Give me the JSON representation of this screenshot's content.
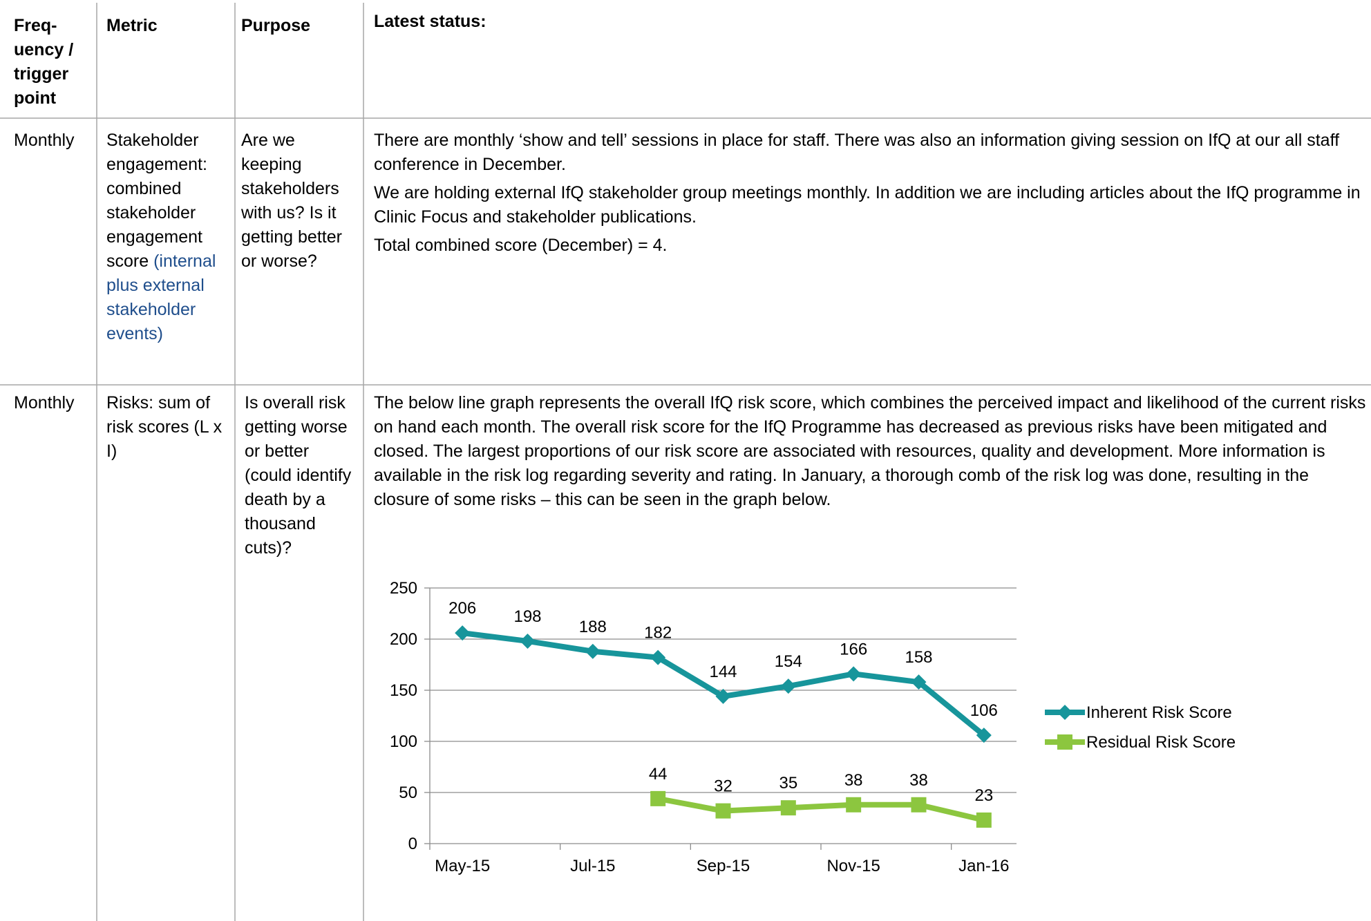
{
  "table": {
    "headers": [
      "Freq-uency / trigger point",
      "Metric",
      "Purpose",
      "Latest status:"
    ],
    "rows": [
      {
        "frequency": "Monthly",
        "metric": "Stakeholder engagement: combined stakeholder engagement score",
        "metric_note": "(internal plus external stakeholder events)",
        "purpose": "Are we keeping stakeholders with us? Is it getting better or worse?",
        "status": [
          "There are monthly ‘show and tell’ sessions in place for staff.  There was also an information giving session on IfQ at our all staff conference in December.",
          "We are holding external IfQ stakeholder group meetings monthly. In addition we are including articles about the IfQ programme in Clinic Focus and stakeholder publications.",
          "Total combined score (December) = 4."
        ]
      },
      {
        "frequency": "Monthly",
        "metric": "Risks: sum of risk scores (L x I)",
        "purpose": "Is overall risk getting worse or better (could identify death by a thousand cuts)?",
        "status": [
          "The below line graph represents the overall IfQ risk score, which combines the perceived impact and likelihood of the current risks on hand each month. The overall risk score for the IfQ Programme has decreased as previous risks have been mitigated and closed. The largest proportions of our risk score are associated with resources, quality and development. More information is available in the risk log regarding severity and rating. In January, a thorough comb of the risk log was done, resulting in the closure of some risks – this can be seen in the graph below."
        ]
      }
    ]
  },
  "chart_data": {
    "type": "line",
    "categories": [
      "May-15",
      null,
      "Jul-15",
      null,
      "Sep-15",
      null,
      "Nov-15",
      null,
      "Jan-16"
    ],
    "series": [
      {
        "name": "Inherent Risk Score",
        "color": "#17959b",
        "marker": "diamond",
        "values": [
          206,
          198,
          188,
          182,
          144,
          154,
          166,
          158,
          106
        ]
      },
      {
        "name": "Residual Risk Score",
        "color": "#8cc63f",
        "marker": "square",
        "values": [
          null,
          null,
          null,
          44,
          32,
          35,
          38,
          38,
          23
        ]
      }
    ],
    "ylim": [
      0,
      250
    ],
    "yticks": [
      0,
      50,
      100,
      150,
      200,
      250
    ],
    "grid": true,
    "legend": "right"
  }
}
